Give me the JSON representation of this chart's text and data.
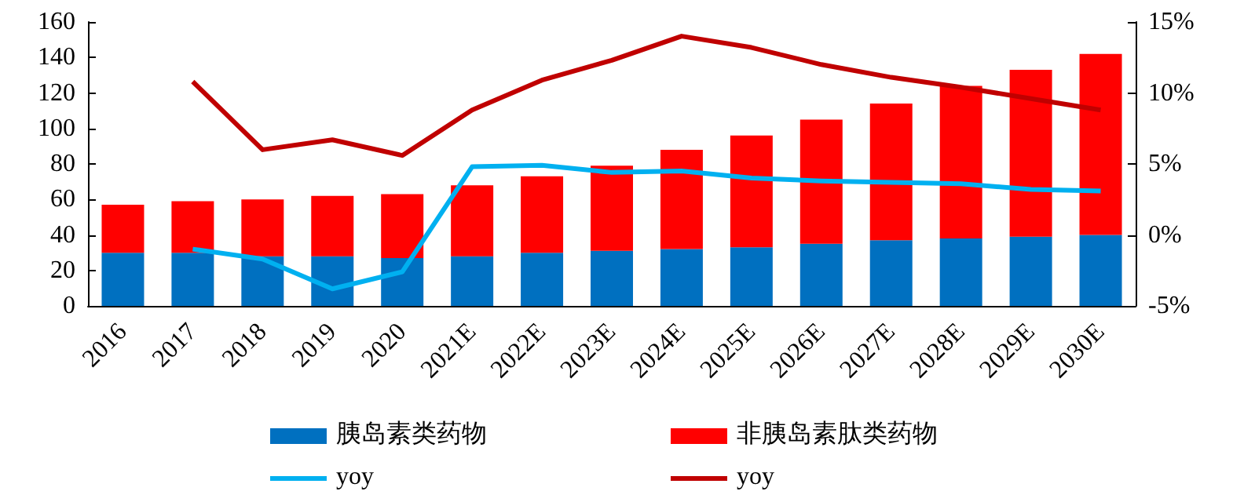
{
  "chart_data": {
    "type": "bar",
    "stacked": true,
    "categories": [
      "2016",
      "2017",
      "2018",
      "2019",
      "2020",
      "2021E",
      "2022E",
      "2023E",
      "2024E",
      "2025E",
      "2026E",
      "2027E",
      "2028E",
      "2029E",
      "2030E"
    ],
    "series": [
      {
        "name": "胰岛素类药物",
        "color": "#0070c0",
        "values": [
          30,
          30,
          28,
          28,
          27,
          28,
          30,
          31,
          32,
          33,
          35,
          37,
          38,
          39,
          40
        ]
      },
      {
        "name": "非胰岛素肽类药物",
        "color": "#ff0000",
        "values": [
          27,
          29,
          32,
          34,
          36,
          40,
          43,
          48,
          56,
          63,
          70,
          77,
          86,
          94,
          102
        ]
      },
      {
        "name": "yoy",
        "type": "line",
        "axis": "y2",
        "color": "#00b0f0",
        "values": [
          null,
          -1.0,
          -1.7,
          -3.8,
          -2.6,
          4.8,
          4.9,
          4.4,
          4.5,
          4.0,
          3.8,
          3.7,
          3.6,
          3.2,
          3.1
        ]
      },
      {
        "name": "yoy",
        "type": "line",
        "axis": "y2",
        "color": "#c00000",
        "values": [
          null,
          10.8,
          6.0,
          6.7,
          5.6,
          8.8,
          10.9,
          12.3,
          14.0,
          13.2,
          12.0,
          11.1,
          10.4,
          9.6,
          8.8
        ]
      }
    ],
    "ylim": [
      0,
      160
    ],
    "yticks": [
      0,
      20,
      40,
      60,
      80,
      100,
      120,
      140,
      160
    ],
    "y2lim": [
      -5,
      15
    ],
    "y2ticks": [
      {
        "value": -5,
        "label": "-5%"
      },
      {
        "value": 0,
        "label": "0%"
      },
      {
        "value": 5,
        "label": "5%"
      },
      {
        "value": 10,
        "label": "10%"
      },
      {
        "value": 15,
        "label": "15%"
      }
    ],
    "legend": "bottom",
    "marker": "none",
    "line_style": "solid",
    "grid": false
  }
}
